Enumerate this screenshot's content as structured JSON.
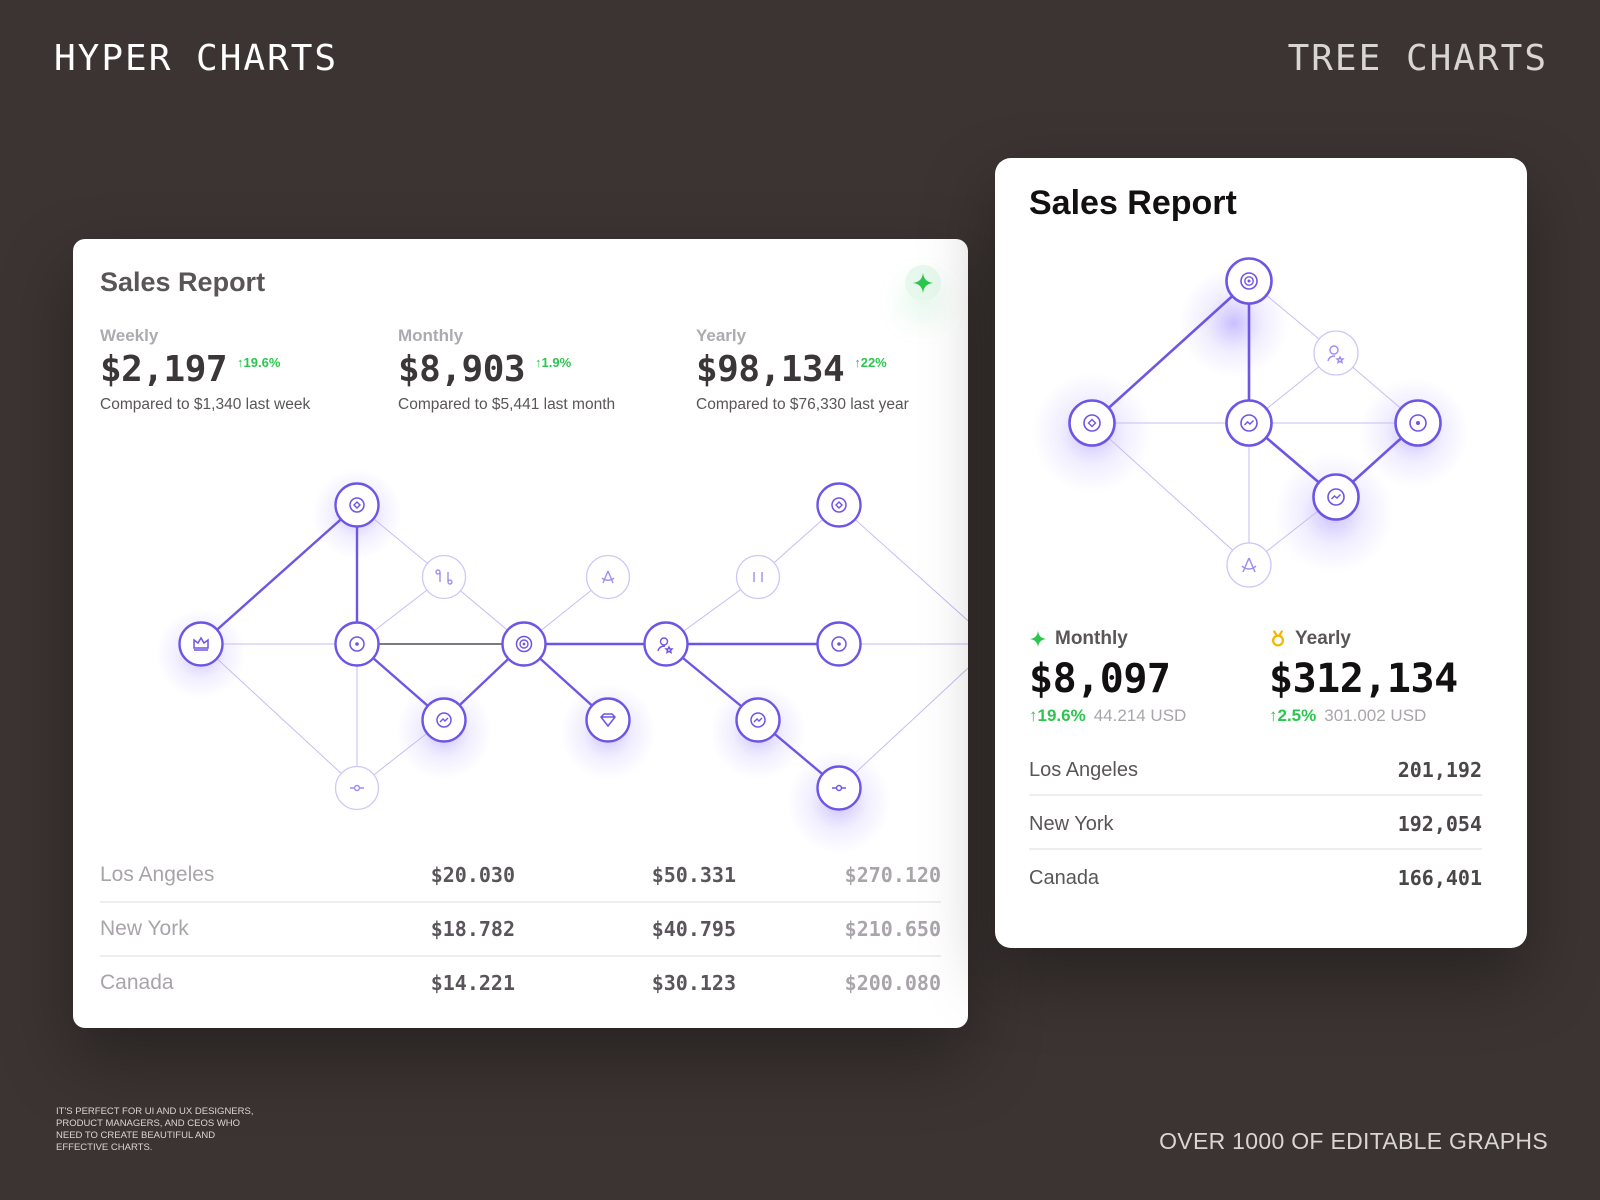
{
  "brand_left": "HYPER CHARTS",
  "brand_right": "TREE CHARTS",
  "footnote": "IT'S PERFECT FOR UI AND UX DESIGNERS, PRODUCT MANAGERS, AND CEOS WHO NEED TO CREATE BEAUTIFUL AND EFFECTIVE CHARTS.",
  "tagline": "OVER 1000 OF EDITABLE GRAPHS",
  "colors": {
    "background": "#3c3433",
    "accent": "#6f55e6",
    "positive": "#2bc64e",
    "gold": "#f2b705"
  },
  "left_card": {
    "title": "Sales Report",
    "action_icon": "sparkle-icon",
    "metrics": [
      {
        "label": "Weekly",
        "value": "$2,197",
        "delta": "↑19.6%",
        "compare": "Compared to $1,340 last week"
      },
      {
        "label": "Monthly",
        "value": "$8,903",
        "delta": "↑1.9%",
        "compare": "Compared to $5,441 last month"
      },
      {
        "label": "Yearly",
        "value": "$98,134",
        "delta": "↑22%",
        "compare": "Compared to $76,330 last year"
      }
    ],
    "table": [
      {
        "city": "Los Angeles",
        "v1": "$20.030",
        "v2": "$50.331",
        "v3": "$270.120"
      },
      {
        "city": "New York",
        "v1": "$18.782",
        "v2": "$40.795",
        "v3": "$210.650"
      },
      {
        "city": "Canada",
        "v1": "$14.221",
        "v2": "$30.123",
        "v3": "$200.080"
      }
    ]
  },
  "right_card": {
    "title": "Sales Report",
    "metrics": [
      {
        "label": "Monthly",
        "icon": "sparkle-icon",
        "value": "$8,097",
        "delta": "↑19.6%",
        "usd": "44.214 USD"
      },
      {
        "label": "Yearly",
        "icon": "medal-icon",
        "value": "$312,134",
        "delta": "↑2.5%",
        "usd": "301.002 USD"
      }
    ],
    "table": [
      {
        "city": "Los Angeles",
        "value": "201,192"
      },
      {
        "city": "New York",
        "value": "192,054"
      },
      {
        "city": "Canada",
        "value": "166,401"
      }
    ]
  }
}
